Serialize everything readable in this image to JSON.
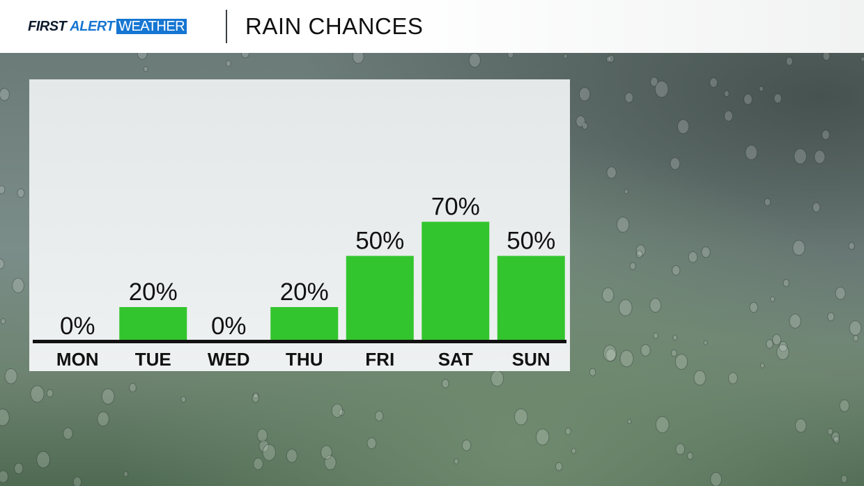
{
  "header": {
    "brand_first": "FIRST",
    "brand_alert": "ALERT",
    "brand_weather": "WEATHER",
    "title": "RAIN CHANCES"
  },
  "colors": {
    "bar": "#33c52d",
    "brand_blue": "#1676d2",
    "axis": "#111111"
  },
  "chart_data": {
    "type": "bar",
    "categories": [
      "MON",
      "TUE",
      "WED",
      "THU",
      "FRI",
      "SAT",
      "SUN"
    ],
    "values": [
      0,
      20,
      0,
      20,
      50,
      70,
      50
    ],
    "data_labels": [
      "0%",
      "20%",
      "0%",
      "20%",
      "50%",
      "70%",
      "50%"
    ],
    "title": "",
    "xlabel": "",
    "ylabel": "",
    "ylim": [
      0,
      100
    ],
    "grid": false
  }
}
